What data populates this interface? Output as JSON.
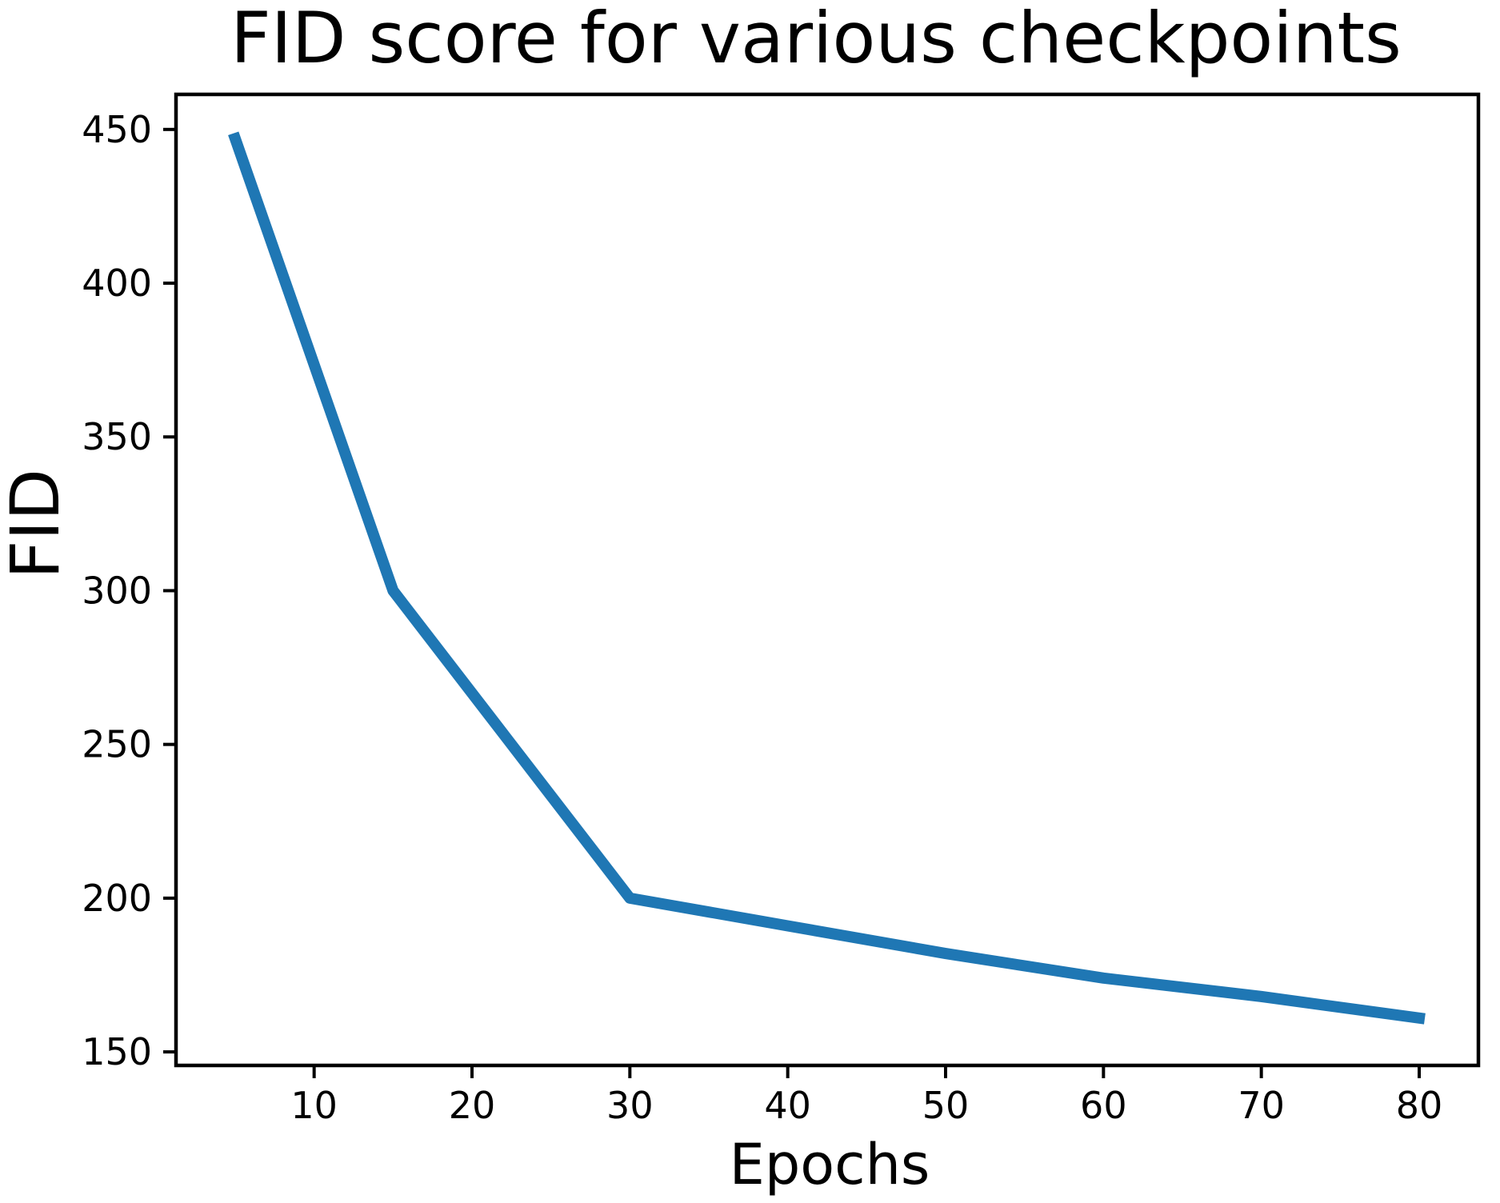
{
  "chart_data": {
    "type": "line",
    "title": "FID score for various checkpoints",
    "xlabel": "Epochs",
    "ylabel": "FID",
    "x": [
      5,
      15,
      30,
      40,
      50,
      60,
      70,
      80
    ],
    "y": [
      447,
      300,
      200,
      191,
      182,
      174,
      168,
      161
    ],
    "x_ticks": [
      10,
      20,
      30,
      40,
      50,
      60,
      70,
      80
    ],
    "y_ticks": [
      150,
      200,
      250,
      300,
      350,
      400,
      450
    ],
    "xlim": [
      1.25,
      83.75
    ],
    "ylim": [
      145.6,
      461.4
    ],
    "line_color": "#1f77b4",
    "axis_color": "#000000",
    "text_color": "#000000",
    "background": "#ffffff",
    "grid": false,
    "legend": null
  }
}
